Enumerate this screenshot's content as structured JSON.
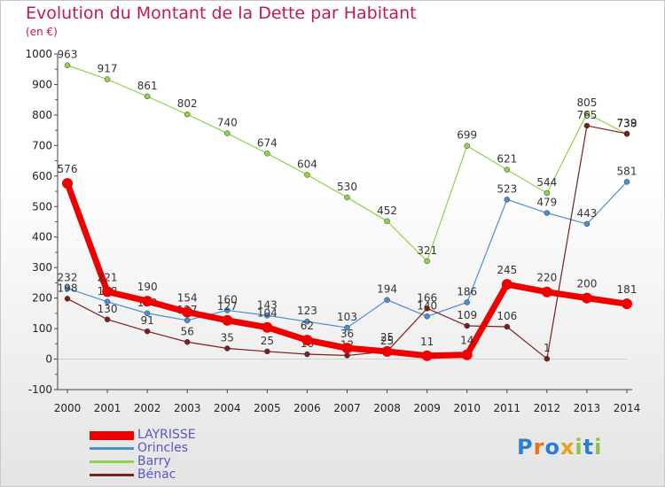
{
  "title": "Evolution du Montant de la Dette par Habitant",
  "unit": "(en €)",
  "logo": {
    "text": "Proxiti",
    "letters": [
      {
        "ch": "P",
        "color": "#2a7fd4"
      },
      {
        "ch": "r",
        "color": "#e8711e"
      },
      {
        "ch": "o",
        "color": "#2a7fd4"
      },
      {
        "ch": "x",
        "color": "#e8a11e"
      },
      {
        "ch": "i",
        "color": "#8bc34a"
      },
      {
        "ch": "t",
        "color": "#2a7fd4"
      },
      {
        "ch": "i",
        "color": "#8bc34a"
      }
    ]
  },
  "chart_data": {
    "type": "line",
    "x": [
      "2000",
      "2001",
      "2002",
      "2003",
      "2004",
      "2005",
      "2006",
      "2007",
      "2008",
      "2009",
      "2010",
      "2011",
      "2012",
      "2013",
      "2014"
    ],
    "ylim": [
      -100,
      1000
    ],
    "yticks": [
      -100,
      0,
      100,
      200,
      300,
      400,
      500,
      600,
      700,
      800,
      900,
      1000
    ],
    "grid": false,
    "legend_position": "bottom-left",
    "series": [
      {
        "name": "Barry",
        "color": "#8ed44a",
        "width": 1.2,
        "marker": 3,
        "values": [
          963,
          917,
          861,
          802,
          740,
          674,
          604,
          530,
          452,
          321,
          699,
          621,
          544,
          805,
          738
        ],
        "labels": [
          "963",
          "917",
          "861",
          "802",
          "740",
          "674",
          "604",
          "530",
          "452",
          "321",
          "699",
          "621",
          "544",
          "805",
          "738"
        ]
      },
      {
        "name": "Orincles",
        "color": "#4a8ecf",
        "width": 1.2,
        "marker": 3,
        "values": [
          232,
          188,
          150,
          127,
          160,
          143,
          123,
          103,
          194,
          140,
          186,
          523,
          479,
          443,
          581
        ],
        "labels": [
          "232",
          "188",
          "150",
          "127",
          "160",
          "143",
          "123",
          "103",
          "194",
          "140",
          "186",
          "523",
          "479",
          "443",
          "581"
        ]
      },
      {
        "name": "Bénac",
        "color": "#7a1f1f",
        "width": 1.2,
        "marker": 3,
        "values": [
          198,
          130,
          91,
          56,
          35,
          25,
          16,
          12,
          25,
          166,
          109,
          106,
          1,
          765,
          739
        ],
        "labels": [
          "198",
          "130",
          "91",
          "56",
          "35",
          "25",
          "16",
          "12",
          "25",
          "166",
          "109",
          "106",
          "1",
          "765",
          "739"
        ]
      },
      {
        "name": "LAYRISSE",
        "color": "#ee0000",
        "width": 7,
        "marker": 6,
        "values": [
          576,
          221,
          190,
          154,
          127,
          104,
          62,
          36,
          25,
          11,
          14,
          245,
          220,
          200,
          181
        ],
        "labels": [
          "576",
          "221",
          "190",
          "154",
          "127",
          "104",
          "62",
          "36",
          "25",
          "11",
          "14",
          "245",
          "220",
          "200",
          "181"
        ]
      }
    ],
    "legend": [
      "LAYRISSE",
      "Orincles",
      "Barry",
      "Bénac"
    ]
  }
}
